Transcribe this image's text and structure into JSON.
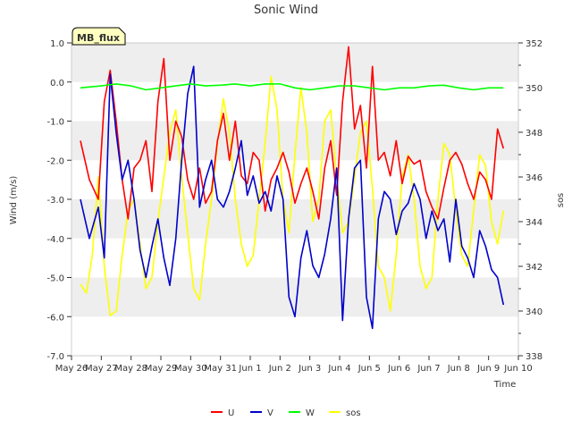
{
  "chart_data": {
    "type": "line",
    "title": "Sonic Wind",
    "badge": "MB_flux",
    "xlabel": "Time",
    "ylabel": "Wind (m/s)",
    "y2label": "sos",
    "x_start_label": "May 26",
    "xticks": [
      "May 26",
      "May 27",
      "May 28",
      "May 29",
      "May 30",
      "May 31",
      "Jun 1",
      "Jun 2",
      "Jun 3",
      "Jun 4",
      "Jun 5",
      "Jun 6",
      "Jun 7",
      "Jun 8",
      "Jun 9",
      "Jun 10"
    ],
    "xlim": [
      0,
      15
    ],
    "ylim": [
      -7.0,
      1.0
    ],
    "yticks": [
      "-7.0",
      "-6.0",
      "-5.0",
      "-4.0",
      "-3.0",
      "-2.0",
      "-1.0",
      "0.0",
      "1.0"
    ],
    "y2lim": [
      338,
      352
    ],
    "y2ticks": [
      "338",
      "340",
      "342",
      "344",
      "346",
      "348",
      "350",
      "352"
    ],
    "grid": "horizontal bands",
    "legend_position": "bottom-center",
    "colors": {
      "U": "#ff0000",
      "V": "#0000cc",
      "W": "#00ff00",
      "sos": "#ffff00",
      "band": "#eeeeee",
      "badge_bg": "#ffffc0",
      "badge_text": "#8b0000"
    },
    "series": [
      {
        "name": "U",
        "axis": "left",
        "x": [
          0.3,
          0.6,
          0.9,
          1.1,
          1.3,
          1.5,
          1.7,
          1.9,
          2.1,
          2.3,
          2.5,
          2.7,
          2.9,
          3.1,
          3.3,
          3.5,
          3.7,
          3.9,
          4.1,
          4.3,
          4.5,
          4.7,
          4.9,
          5.1,
          5.3,
          5.5,
          5.7,
          5.9,
          6.1,
          6.3,
          6.5,
          6.7,
          6.9,
          7.1,
          7.3,
          7.5,
          7.7,
          7.9,
          8.1,
          8.3,
          8.5,
          8.7,
          8.9,
          9.1,
          9.3,
          9.5,
          9.7,
          9.9,
          10.1,
          10.3,
          10.5,
          10.7,
          10.9,
          11.1,
          11.3,
          11.5,
          11.7,
          11.9,
          12.1,
          12.3,
          12.5,
          12.7,
          12.9,
          13.1,
          13.3,
          13.5,
          13.7,
          13.9,
          14.1,
          14.3,
          14.5
        ],
        "values": [
          -1.5,
          -2.5,
          -3.0,
          -0.5,
          0.3,
          -1.0,
          -2.5,
          -3.5,
          -2.2,
          -2.0,
          -1.5,
          -2.8,
          -0.5,
          0.6,
          -2.0,
          -1.0,
          -1.4,
          -2.5,
          -3.0,
          -2.2,
          -3.1,
          -2.8,
          -1.5,
          -0.8,
          -2.0,
          -1.0,
          -2.4,
          -2.6,
          -1.8,
          -2.0,
          -3.3,
          -2.5,
          -2.2,
          -1.8,
          -2.3,
          -3.1,
          -2.6,
          -2.2,
          -2.8,
          -3.5,
          -2.2,
          -1.5,
          -2.9,
          -0.5,
          0.9,
          -1.2,
          -0.6,
          -2.2,
          0.4,
          -2.0,
          -1.8,
          -2.4,
          -1.5,
          -2.6,
          -1.9,
          -2.1,
          -2.0,
          -2.8,
          -3.2,
          -3.5,
          -2.7,
          -2.0,
          -1.8,
          -2.1,
          -2.6,
          -3.0,
          -2.3,
          -2.5,
          -3.0,
          -1.2,
          -1.7
        ]
      },
      {
        "name": "V",
        "axis": "left",
        "x": [
          0.3,
          0.6,
          0.9,
          1.1,
          1.3,
          1.5,
          1.7,
          1.9,
          2.1,
          2.3,
          2.5,
          2.7,
          2.9,
          3.1,
          3.3,
          3.5,
          3.7,
          3.9,
          4.1,
          4.3,
          4.5,
          4.7,
          4.9,
          5.1,
          5.3,
          5.5,
          5.7,
          5.9,
          6.1,
          6.3,
          6.5,
          6.7,
          6.9,
          7.1,
          7.3,
          7.5,
          7.7,
          7.9,
          8.1,
          8.3,
          8.5,
          8.7,
          8.9,
          9.1,
          9.3,
          9.5,
          9.7,
          9.9,
          10.1,
          10.3,
          10.5,
          10.7,
          10.9,
          11.1,
          11.3,
          11.5,
          11.7,
          11.9,
          12.1,
          12.3,
          12.5,
          12.7,
          12.9,
          13.1,
          13.3,
          13.5,
          13.7,
          13.9,
          14.1,
          14.3,
          14.5
        ],
        "values": [
          -3.0,
          -4.0,
          -3.2,
          -4.5,
          0.2,
          -1.3,
          -2.5,
          -2.0,
          -3.0,
          -4.3,
          -5.0,
          -4.2,
          -3.5,
          -4.5,
          -5.2,
          -4.0,
          -2.0,
          -0.3,
          0.4,
          -3.2,
          -2.5,
          -2.0,
          -3.0,
          -3.2,
          -2.8,
          -2.2,
          -1.5,
          -2.9,
          -2.4,
          -3.1,
          -2.8,
          -3.3,
          -2.4,
          -3.0,
          -5.5,
          -6.0,
          -4.5,
          -3.8,
          -4.7,
          -5.0,
          -4.4,
          -3.5,
          -2.2,
          -6.1,
          -3.5,
          -2.2,
          -2.0,
          -5.5,
          -6.3,
          -3.5,
          -2.8,
          -3.0,
          -3.9,
          -3.3,
          -3.1,
          -2.6,
          -3.0,
          -4.0,
          -3.3,
          -3.8,
          -3.5,
          -4.6,
          -3.0,
          -4.2,
          -4.5,
          -5.0,
          -3.8,
          -4.2,
          -4.8,
          -5.0,
          -5.7
        ]
      },
      {
        "name": "W",
        "axis": "left",
        "x": [
          0.3,
          1.0,
          1.5,
          2.0,
          2.5,
          3.0,
          3.5,
          4.0,
          4.5,
          5.0,
          5.5,
          6.0,
          6.5,
          7.0,
          7.5,
          8.0,
          8.5,
          9.0,
          9.5,
          10.0,
          10.5,
          11.0,
          11.5,
          12.0,
          12.5,
          13.0,
          13.5,
          14.0,
          14.5
        ],
        "values": [
          -0.15,
          -0.1,
          -0.05,
          -0.1,
          -0.2,
          -0.15,
          -0.1,
          -0.05,
          -0.1,
          -0.08,
          -0.05,
          -0.1,
          -0.05,
          -0.05,
          -0.15,
          -0.2,
          -0.15,
          -0.1,
          -0.1,
          -0.15,
          -0.2,
          -0.15,
          -0.15,
          -0.1,
          -0.08,
          -0.15,
          -0.2,
          -0.15,
          -0.15
        ]
      },
      {
        "name": "sos",
        "axis": "right",
        "x": [
          0.3,
          0.5,
          0.7,
          0.9,
          1.1,
          1.3,
          1.5,
          1.7,
          1.9,
          2.1,
          2.3,
          2.5,
          2.7,
          2.9,
          3.1,
          3.3,
          3.5,
          3.7,
          3.9,
          4.1,
          4.3,
          4.5,
          4.7,
          4.9,
          5.1,
          5.3,
          5.5,
          5.7,
          5.9,
          6.1,
          6.3,
          6.5,
          6.7,
          6.9,
          7.1,
          7.3,
          7.5,
          7.7,
          7.9,
          8.1,
          8.3,
          8.5,
          8.7,
          8.9,
          9.1,
          9.3,
          9.5,
          9.7,
          9.9,
          10.1,
          10.3,
          10.5,
          10.7,
          10.9,
          11.1,
          11.3,
          11.5,
          11.7,
          11.9,
          12.1,
          12.3,
          12.5,
          12.7,
          12.9,
          13.1,
          13.3,
          13.5,
          13.7,
          13.9,
          14.1,
          14.3,
          14.5
        ],
        "values": [
          341.2,
          340.8,
          342.5,
          346.0,
          342.0,
          339.8,
          340.0,
          342.5,
          344.5,
          345.0,
          343.0,
          341.0,
          341.5,
          344.0,
          346.0,
          348.0,
          349.0,
          346.0,
          343.5,
          341.0,
          340.5,
          343.0,
          345.0,
          347.5,
          349.5,
          348.0,
          345.0,
          343.0,
          342.0,
          342.5,
          345.0,
          347.5,
          350.5,
          349.0,
          345.0,
          343.5,
          347.0,
          350.0,
          348.0,
          344.0,
          345.0,
          348.5,
          349.0,
          346.0,
          343.5,
          344.0,
          346.0,
          348.0,
          348.5,
          345.5,
          342.0,
          341.5,
          340.0,
          342.5,
          346.0,
          347.0,
          345.0,
          342.0,
          341.0,
          341.5,
          345.0,
          347.5,
          347.0,
          344.5,
          342.5,
          342.0,
          344.5,
          347.0,
          346.5,
          344.0,
          343.0,
          344.5
        ]
      }
    ]
  }
}
